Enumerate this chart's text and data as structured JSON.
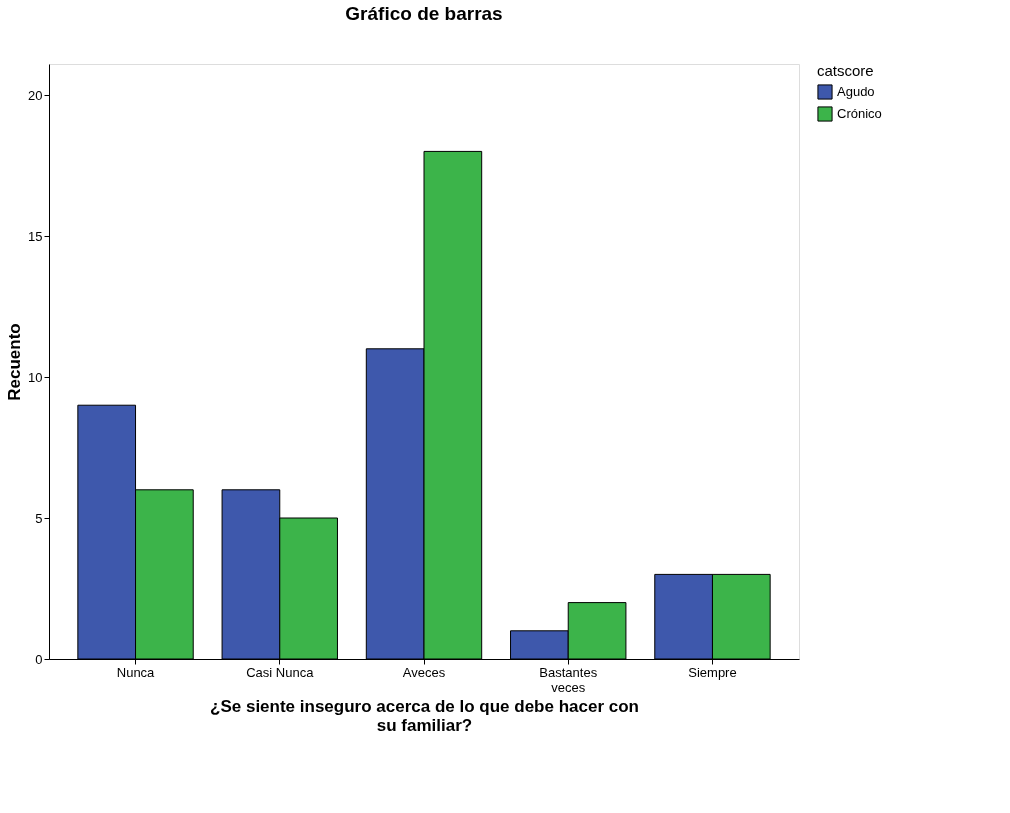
{
  "chart_data": {
    "type": "bar",
    "title": "Gráfico de barras",
    "xlabel": "¿Se siente inseguro acerca de lo que debe hacer con su familiar?",
    "ylabel": "Recuento",
    "legend_title": "catscore",
    "categories": [
      "Nunca",
      "Casi Nunca",
      "Aveces",
      "Bastantes veces",
      "Siempre"
    ],
    "series": [
      {
        "name": "Agudo",
        "color": "#3e58ac",
        "values": [
          9,
          6,
          11,
          1,
          3
        ]
      },
      {
        "name": "Crónico",
        "color": "#3cb44a",
        "values": [
          6,
          5,
          18,
          2,
          3
        ]
      }
    ],
    "ylim": [
      0,
      21.1
    ],
    "yticks": [
      0,
      5,
      10,
      15,
      20
    ],
    "grid": false,
    "legend": "top right"
  }
}
